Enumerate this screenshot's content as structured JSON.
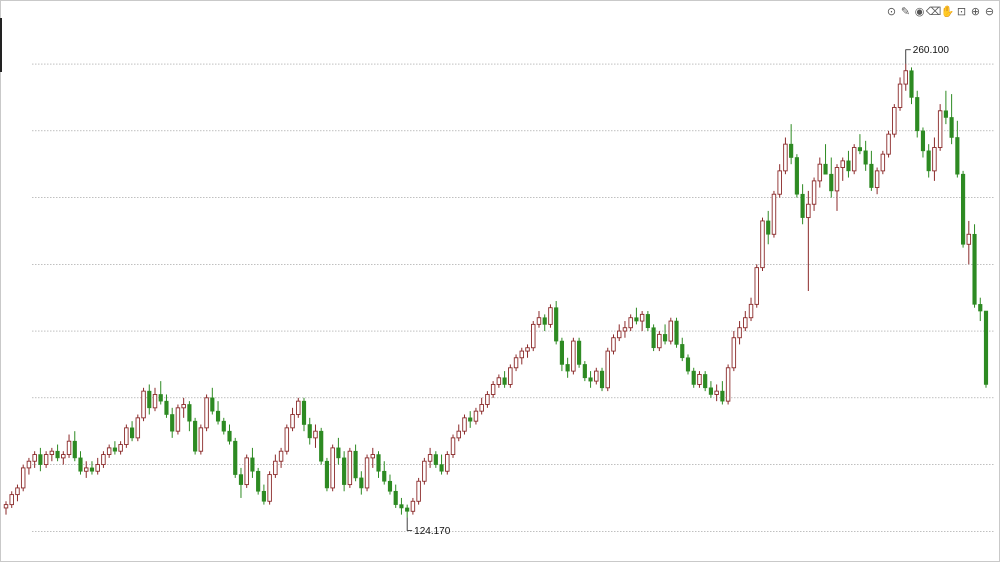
{
  "toolbar": {
    "items": [
      {
        "name": "camera-icon",
        "glyph": "⊙"
      },
      {
        "name": "pencil-icon",
        "glyph": "✎"
      },
      {
        "name": "eye-icon",
        "glyph": "◉"
      },
      {
        "name": "trash-icon",
        "glyph": "⌫"
      },
      {
        "name": "hand-icon",
        "glyph": "✋"
      },
      {
        "name": "lock-icon",
        "glyph": "⊡"
      },
      {
        "name": "zoom-in-icon",
        "glyph": "⊕"
      },
      {
        "name": "zoom-out-icon",
        "glyph": "⊖"
      }
    ]
  },
  "chart_data": {
    "type": "candlestick",
    "title": "",
    "xlabel": "",
    "ylabel": "",
    "ylim": [
      115,
      275
    ],
    "grid": "horizontal dotted",
    "legend": "none",
    "colors": {
      "up": "#2d8a22",
      "down": "#8b2a2a",
      "grid": "#9a9a9a"
    },
    "annotations": [
      {
        "label": "260.100",
        "value": 260.1,
        "type": "max"
      },
      {
        "label": "124.170",
        "value": 124.17,
        "type": "min"
      }
    ],
    "ohlc": [
      [
        127.0,
        129.0,
        125.0,
        128.0
      ],
      [
        128.0,
        132.0,
        127.0,
        131.0
      ],
      [
        131.0,
        134.0,
        129.0,
        133.0
      ],
      [
        133.0,
        140.0,
        132.0,
        139.0
      ],
      [
        139.0,
        142.0,
        137.0,
        141.0
      ],
      [
        141.0,
        144.0,
        139.0,
        143.0
      ],
      [
        143.0,
        145.0,
        138.0,
        140.0
      ],
      [
        140.0,
        144.0,
        139.0,
        143.0
      ],
      [
        143.0,
        145.0,
        141.0,
        144.0
      ],
      [
        144.0,
        146.0,
        141.0,
        142.0
      ],
      [
        142.0,
        144.0,
        140.0,
        143.0
      ],
      [
        143.0,
        149.0,
        142.0,
        147.0
      ],
      [
        147.0,
        150.0,
        141.0,
        142.0
      ],
      [
        142.0,
        144.0,
        137.0,
        138.0
      ],
      [
        138.0,
        141.0,
        136.0,
        139.0
      ],
      [
        139.0,
        141.0,
        137.0,
        138.0
      ],
      [
        138.0,
        142.0,
        137.0,
        140.0
      ],
      [
        140.0,
        144.0,
        139.0,
        143.0
      ],
      [
        143.0,
        146.0,
        142.0,
        145.0
      ],
      [
        145.0,
        147.0,
        143.0,
        144.0
      ],
      [
        144.0,
        147.0,
        143.0,
        146.0
      ],
      [
        146.0,
        152.0,
        145.0,
        151.0
      ],
      [
        151.0,
        153.0,
        147.0,
        148.0
      ],
      [
        148.0,
        155.0,
        147.0,
        154.0
      ],
      [
        154.0,
        163.0,
        153.0,
        162.0
      ],
      [
        162.0,
        164.0,
        155.0,
        157.0
      ],
      [
        157.0,
        163.0,
        156.0,
        161.0
      ],
      [
        161.0,
        165.0,
        158.0,
        159.0
      ],
      [
        159.0,
        161.0,
        154.0,
        155.0
      ],
      [
        155.0,
        157.0,
        148.0,
        150.0
      ],
      [
        150.0,
        158.0,
        149.0,
        157.0
      ],
      [
        157.0,
        160.0,
        154.0,
        158.0
      ],
      [
        158.0,
        159.0,
        150.0,
        153.0
      ],
      [
        153.0,
        154.0,
        143.0,
        144.0
      ],
      [
        144.0,
        152.0,
        143.0,
        151.0
      ],
      [
        151.0,
        161.0,
        150.0,
        160.0
      ],
      [
        160.0,
        163.0,
        155.0,
        156.0
      ],
      [
        156.0,
        159.0,
        152.0,
        153.0
      ],
      [
        153.0,
        154.0,
        149.0,
        150.0
      ],
      [
        150.0,
        152.0,
        146.0,
        147.0
      ],
      [
        147.0,
        148.0,
        136.0,
        137.0
      ],
      [
        137.0,
        139.0,
        130.0,
        134.0
      ],
      [
        134.0,
        143.0,
        133.0,
        142.0
      ],
      [
        142.0,
        145.0,
        136.0,
        138.0
      ],
      [
        138.0,
        139.0,
        131.0,
        132.0
      ],
      [
        132.0,
        134.0,
        128.0,
        129.0
      ],
      [
        129.0,
        138.0,
        128.0,
        137.0
      ],
      [
        137.0,
        143.0,
        136.0,
        141.0
      ],
      [
        141.0,
        145.0,
        139.0,
        144.0
      ],
      [
        144.0,
        152.0,
        143.0,
        151.0
      ],
      [
        151.0,
        157.0,
        150.0,
        155.0
      ],
      [
        155.0,
        160.0,
        154.0,
        159.0
      ],
      [
        159.0,
        160.0,
        150.0,
        152.0
      ],
      [
        152.0,
        154.0,
        146.0,
        148.0
      ],
      [
        148.0,
        152.0,
        145.0,
        150.0
      ],
      [
        150.0,
        151.0,
        140.0,
        141.0
      ],
      [
        141.0,
        142.0,
        132.0,
        133.0
      ],
      [
        133.0,
        146.0,
        132.0,
        145.0
      ],
      [
        145.0,
        148.0,
        140.0,
        142.0
      ],
      [
        142.0,
        144.0,
        132.0,
        134.0
      ],
      [
        134.0,
        145.0,
        133.0,
        144.0
      ],
      [
        144.0,
        146.0,
        135.0,
        136.0
      ],
      [
        136.0,
        138.0,
        131.0,
        133.0
      ],
      [
        133.0,
        143.0,
        132.0,
        142.0
      ],
      [
        142.0,
        145.0,
        139.0,
        143.0
      ],
      [
        143.0,
        144.0,
        136.0,
        138.0
      ],
      [
        138.0,
        141.0,
        134.0,
        135.0
      ],
      [
        135.0,
        137.0,
        131.0,
        132.0
      ],
      [
        132.0,
        134.0,
        127.0,
        128.0
      ],
      [
        128.0,
        130.0,
        125.0,
        127.0
      ],
      [
        127.0,
        128.0,
        124.17,
        126.0
      ],
      [
        126.0,
        130.0,
        125.0,
        129.0
      ],
      [
        129.0,
        136.0,
        128.0,
        135.0
      ],
      [
        135.0,
        142.0,
        134.0,
        141.0
      ],
      [
        141.0,
        145.0,
        139.0,
        143.0
      ],
      [
        143.0,
        144.0,
        139.0,
        140.0
      ],
      [
        140.0,
        143.0,
        137.0,
        138.0
      ],
      [
        138.0,
        144.0,
        137.0,
        143.0
      ],
      [
        143.0,
        149.0,
        142.0,
        148.0
      ],
      [
        148.0,
        152.0,
        147.0,
        150.0
      ],
      [
        150.0,
        155.0,
        149.0,
        154.0
      ],
      [
        154.0,
        156.0,
        151.0,
        153.0
      ],
      [
        153.0,
        157.0,
        152.0,
        156.0
      ],
      [
        156.0,
        160.0,
        155.0,
        158.0
      ],
      [
        158.0,
        162.0,
        157.0,
        161.0
      ],
      [
        161.0,
        165.0,
        160.0,
        164.0
      ],
      [
        164.0,
        167.0,
        163.0,
        166.0
      ],
      [
        166.0,
        168.0,
        163.0,
        164.0
      ],
      [
        164.0,
        170.0,
        163.0,
        169.0
      ],
      [
        169.0,
        173.0,
        168.0,
        172.0
      ],
      [
        172.0,
        175.0,
        170.0,
        174.0
      ],
      [
        174.0,
        176.0,
        172.0,
        175.0
      ],
      [
        175.0,
        183.0,
        174.0,
        182.0
      ],
      [
        182.0,
        186.0,
        181.0,
        184.0
      ],
      [
        184.0,
        185.0,
        180.0,
        182.0
      ],
      [
        182.0,
        188.0,
        181.0,
        187.0
      ],
      [
        187.0,
        189.0,
        176.0,
        177.0
      ],
      [
        177.0,
        178.0,
        168.0,
        170.0
      ],
      [
        170.0,
        172.0,
        166.0,
        168.0
      ],
      [
        168.0,
        178.0,
        167.0,
        177.0
      ],
      [
        177.0,
        178.0,
        169.0,
        170.0
      ],
      [
        170.0,
        171.0,
        165.0,
        166.0
      ],
      [
        166.0,
        168.0,
        163.0,
        165.0
      ],
      [
        165.0,
        169.0,
        164.0,
        168.0
      ],
      [
        168.0,
        169.0,
        162.0,
        163.0
      ],
      [
        163.0,
        175.0,
        162.0,
        174.0
      ],
      [
        174.0,
        179.0,
        173.0,
        178.0
      ],
      [
        178.0,
        182.0,
        177.0,
        180.0
      ],
      [
        180.0,
        183.0,
        178.0,
        181.0
      ],
      [
        181.0,
        185.0,
        180.0,
        184.0
      ],
      [
        184.0,
        187.0,
        182.0,
        183.0
      ],
      [
        183.0,
        186.0,
        180.0,
        185.0
      ],
      [
        185.0,
        186.0,
        180.0,
        181.0
      ],
      [
        181.0,
        182.0,
        174.0,
        175.0
      ],
      [
        175.0,
        180.0,
        174.0,
        179.0
      ],
      [
        179.0,
        182.0,
        176.0,
        177.0
      ],
      [
        177.0,
        184.0,
        176.0,
        183.0
      ],
      [
        183.0,
        184.0,
        175.0,
        176.0
      ],
      [
        176.0,
        178.0,
        171.0,
        172.0
      ],
      [
        172.0,
        173.0,
        167.0,
        168.0
      ],
      [
        168.0,
        169.0,
        163.0,
        164.0
      ],
      [
        164.0,
        168.0,
        163.0,
        167.0
      ],
      [
        167.0,
        168.0,
        162.0,
        163.0
      ],
      [
        163.0,
        165.0,
        160.0,
        161.0
      ],
      [
        161.0,
        164.0,
        159.0,
        162.0
      ],
      [
        162.0,
        165.0,
        158.0,
        159.0
      ],
      [
        159.0,
        170.0,
        158.0,
        169.0
      ],
      [
        169.0,
        180.0,
        168.0,
        178.0
      ],
      [
        178.0,
        183.0,
        176.0,
        181.0
      ],
      [
        181.0,
        186.0,
        180.0,
        184.0
      ],
      [
        184.0,
        190.0,
        183.0,
        188.0
      ],
      [
        188.0,
        200.0,
        187.0,
        199.0
      ],
      [
        199.0,
        214.0,
        198.0,
        213.0
      ],
      [
        213.0,
        216.0,
        206.0,
        209.0
      ],
      [
        209.0,
        222.0,
        208.0,
        221.0
      ],
      [
        221.0,
        230.0,
        220.0,
        228.0
      ],
      [
        228.0,
        238.0,
        227.0,
        236.0
      ],
      [
        236.0,
        242.0,
        230.0,
        232.0
      ],
      [
        232.0,
        233.0,
        220.0,
        221.0
      ],
      [
        221.0,
        224.0,
        212.0,
        214.0
      ],
      [
        214.0,
        222.0,
        192.0,
        218.0
      ],
      [
        218.0,
        226.0,
        216.0,
        225.0
      ],
      [
        225.0,
        232.0,
        223.0,
        230.0
      ],
      [
        230.0,
        236.0,
        228.0,
        227.0
      ],
      [
        227.0,
        232.0,
        220.0,
        222.0
      ],
      [
        222.0,
        230.0,
        216.0,
        229.0
      ],
      [
        229.0,
        232.0,
        225.0,
        231.0
      ],
      [
        231.0,
        234.0,
        226.0,
        228.0
      ],
      [
        228.0,
        236.0,
        227.0,
        235.0
      ],
      [
        235.0,
        239.0,
        233.0,
        234.0
      ],
      [
        234.0,
        237.0,
        228.0,
        230.0
      ],
      [
        230.0,
        234.0,
        222.0,
        223.0
      ],
      [
        223.0,
        229.0,
        221.0,
        228.0
      ],
      [
        228.0,
        234.0,
        227.0,
        233.0
      ],
      [
        233.0,
        240.0,
        232.0,
        239.0
      ],
      [
        239.0,
        248.0,
        238.0,
        247.0
      ],
      [
        247.0,
        256.0,
        246.0,
        254.0
      ],
      [
        254.0,
        260.1,
        252.0,
        258.0
      ],
      [
        258.0,
        259.0,
        248.0,
        250.0
      ],
      [
        250.0,
        252.0,
        238.0,
        240.0
      ],
      [
        240.0,
        241.0,
        232.0,
        234.0
      ],
      [
        234.0,
        236.0,
        226.0,
        228.0
      ],
      [
        228.0,
        238.0,
        225.0,
        235.0
      ],
      [
        235.0,
        248.0,
        234.0,
        246.0
      ],
      [
        246.0,
        252.0,
        242.0,
        244.0
      ],
      [
        244.0,
        251.0,
        236.0,
        238.0
      ],
      [
        238.0,
        243.0,
        226.0,
        227.0
      ],
      [
        227.0,
        228.0,
        205.0,
        206.0
      ],
      [
        206.0,
        213.0,
        200.0,
        209.0
      ],
      [
        209.0,
        212.0,
        187.0,
        188.0
      ],
      [
        188.0,
        190.0,
        183.0,
        186.0
      ],
      [
        186.0,
        186.0,
        163.0,
        164.0
      ]
    ]
  }
}
